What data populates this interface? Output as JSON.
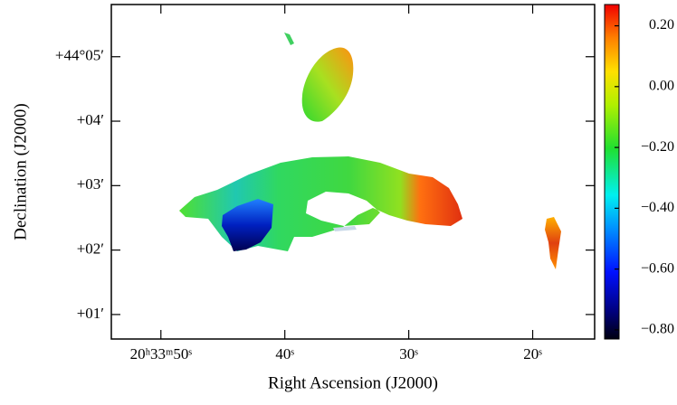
{
  "chart_data": {
    "type": "image",
    "x_label": "Right Ascension (J2000)",
    "y_label": "Declination (J2000)",
    "xlim": [
      54,
      15
    ],
    "xticks": [
      {
        "value": 50,
        "label": "20ʰ33ᵐ50ˢ"
      },
      {
        "value": 40,
        "label": "40ˢ"
      },
      {
        "value": 30,
        "label": "30ˢ"
      },
      {
        "value": 20,
        "label": "20ˢ"
      }
    ],
    "ylim": [
      0.62,
      5.81
    ],
    "yticks": [
      {
        "value": 5,
        "label": "+44°05′"
      },
      {
        "value": 4,
        "label": "+04′"
      },
      {
        "value": 3,
        "label": "+03′"
      },
      {
        "value": 2,
        "label": "+02′"
      },
      {
        "value": 1,
        "label": "+01′"
      }
    ],
    "clim": [
      -0.83,
      0.27
    ],
    "cticks": [
      {
        "value": 0.2,
        "label": "0.20"
      },
      {
        "value": 0,
        "label": "0.00"
      },
      {
        "value": -0.2,
        "label": "−0.20"
      },
      {
        "value": -0.4,
        "label": "−0.40"
      },
      {
        "value": -0.6,
        "label": "−0.60"
      },
      {
        "value": -0.8,
        "label": "−0.80"
      }
    ]
  }
}
